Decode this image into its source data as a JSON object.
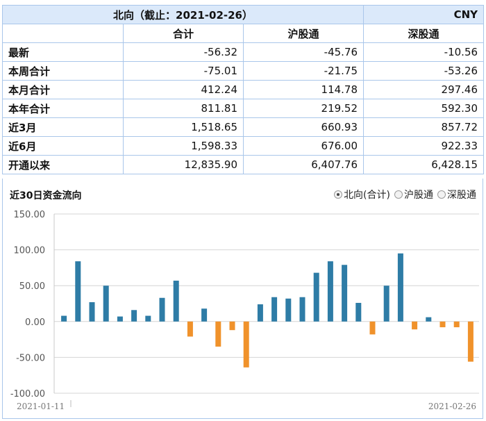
{
  "summary": {
    "title": "北向（截止：2021-02-26）",
    "unit": "CNY",
    "columns": [
      "合计",
      "沪股通",
      "深股通"
    ],
    "rows": [
      {
        "label": "最新",
        "values": [
          "-56.32",
          "-45.76",
          "-10.56"
        ]
      },
      {
        "label": "本周合计",
        "values": [
          "-75.01",
          "-21.75",
          "-53.26"
        ]
      },
      {
        "label": "本月合计",
        "values": [
          "412.24",
          "114.78",
          "297.46"
        ]
      },
      {
        "label": "本年合计",
        "values": [
          "811.81",
          "219.52",
          "592.30"
        ]
      },
      {
        "label": "近3月",
        "values": [
          "1,518.65",
          "660.93",
          "857.72"
        ]
      },
      {
        "label": "近6月",
        "values": [
          "1,598.33",
          "676.00",
          "922.33"
        ]
      },
      {
        "label": "开通以来",
        "values": [
          "12,835.90",
          "6,407.76",
          "6,428.15"
        ]
      }
    ]
  },
  "chart_section": {
    "title": "近30日资金流向",
    "legend_options": [
      {
        "label": "北向(合计)",
        "selected": true
      },
      {
        "label": "沪股通",
        "selected": false
      },
      {
        "label": "深股通",
        "selected": false
      }
    ]
  },
  "chart_data": {
    "type": "bar",
    "ylim": [
      -100,
      150
    ],
    "y_ticks": [
      "150.00",
      "100.00",
      "50.00",
      "0.00",
      "-50.00",
      "-100.00"
    ],
    "start_label": "2021-01-11",
    "end_label": "2021-02-26",
    "values": [
      8,
      84,
      27,
      50,
      7,
      16,
      8,
      33,
      57,
      -21,
      18,
      -35,
      -12,
      -64,
      24,
      34,
      32,
      34,
      68,
      84,
      79,
      26,
      -18,
      50,
      95,
      -11,
      6,
      -8,
      -8,
      -56
    ],
    "colors": {
      "positive": "#2e7ca6",
      "negative": "#f0922b"
    }
  }
}
